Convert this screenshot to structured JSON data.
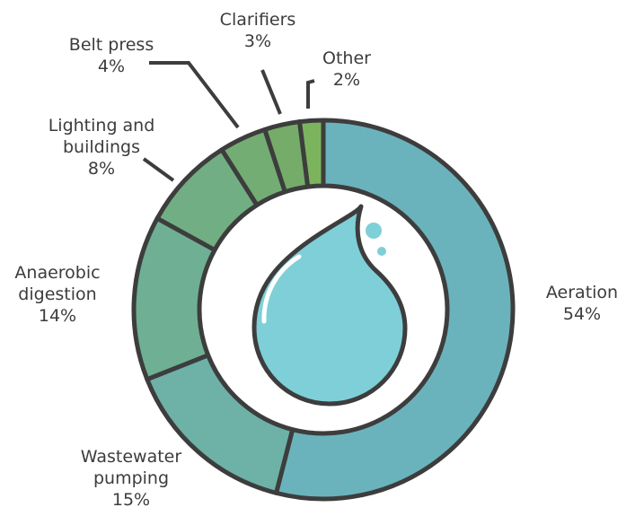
{
  "chart_data": {
    "type": "pie",
    "variant": "donut",
    "title": "",
    "slices": [
      {
        "label": "Aeration",
        "value": 54,
        "value_label": "54%",
        "color": "#6bb3bc"
      },
      {
        "label": "Wastewater pumping",
        "value": 15,
        "value_label": "15%",
        "color": "#6eb1a6"
      },
      {
        "label": "Anaerobic digestion",
        "value": 14,
        "value_label": "14%",
        "color": "#6fb094"
      },
      {
        "label": "Lighting and buildings",
        "value": 8,
        "value_label": "8%",
        "color": "#72ae84"
      },
      {
        "label": "Belt press",
        "value": 4,
        "value_label": "4%",
        "color": "#73ad73"
      },
      {
        "label": "Clarifiers",
        "value": 3,
        "value_label": "3%",
        "color": "#75ac69"
      },
      {
        "label": "Other",
        "value": 2,
        "value_label": "2%",
        "color": "#7cb45e"
      }
    ],
    "center_icon": "water-drop-icon",
    "outline_color": "#3d3d3d",
    "drop_color": "#7ecfd8"
  }
}
